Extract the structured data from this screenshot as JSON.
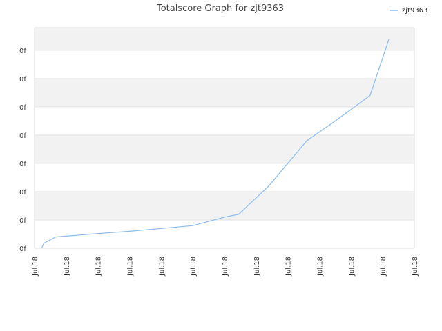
{
  "chart_data": {
    "type": "line",
    "title": "Totalscore Graph for zjt9363",
    "xlabel": "",
    "ylabel": "",
    "x_tick_labels": [
      "Jul.18",
      "Jul.18",
      "Jul.18",
      "Jul.18",
      "Jul.18",
      "Jul.18",
      "Jul.18",
      "Jul.18",
      "Jul.18",
      "Jul.18",
      "Jul.18",
      "Jul.18",
      "Jul.18"
    ],
    "y_tick_labels": [
      "0f",
      "0f",
      "0f",
      "0f",
      "0f",
      "0f",
      "0f",
      "0f"
    ],
    "ylim": [
      0,
      7.8
    ],
    "xlim": [
      0,
      12
    ],
    "grid": true,
    "band_colors": [
      "#ffffff",
      "#f2f2f2"
    ],
    "top_band_color": "#ececec",
    "legend_position": "top-right",
    "series": [
      {
        "name": "zjt9363",
        "color": "#88bbee",
        "x": [
          0.22,
          0.3,
          0.67,
          1.0,
          2.0,
          3.0,
          4.0,
          5.0,
          6.0,
          6.45,
          7.4,
          8.6,
          9.5,
          10.6,
          11.2
        ],
        "y": [
          0.0,
          0.18,
          0.4,
          0.43,
          0.52,
          0.6,
          0.7,
          0.8,
          1.1,
          1.2,
          2.2,
          3.8,
          4.5,
          5.4,
          7.4
        ]
      }
    ]
  }
}
